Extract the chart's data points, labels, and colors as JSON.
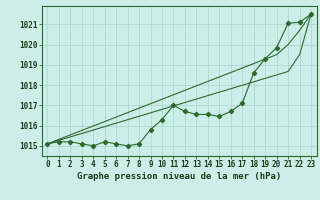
{
  "xlabel": "Graphe pression niveau de la mer (hPa)",
  "x": [
    0,
    1,
    2,
    3,
    4,
    5,
    6,
    7,
    8,
    9,
    10,
    11,
    12,
    13,
    14,
    15,
    16,
    17,
    18,
    19,
    20,
    21,
    22,
    23
  ],
  "y_main": [
    1015.1,
    1015.2,
    1015.2,
    1015.1,
    1015.0,
    1015.2,
    1015.1,
    1015.0,
    1015.1,
    1015.8,
    1016.3,
    1017.0,
    1016.7,
    1016.55,
    1016.55,
    1016.45,
    1016.7,
    1017.1,
    1018.6,
    1019.3,
    1019.85,
    1021.05,
    1021.1,
    1021.5
  ],
  "y_line1": [
    1015.1,
    1015.27,
    1015.44,
    1015.61,
    1015.78,
    1015.95,
    1016.12,
    1016.29,
    1016.46,
    1016.63,
    1016.8,
    1016.97,
    1017.14,
    1017.31,
    1017.48,
    1017.65,
    1017.82,
    1017.99,
    1018.16,
    1018.33,
    1018.5,
    1018.67,
    1019.5,
    1021.5
  ],
  "y_line2": [
    1015.1,
    1015.32,
    1015.54,
    1015.76,
    1015.98,
    1016.2,
    1016.42,
    1016.64,
    1016.86,
    1017.08,
    1017.3,
    1017.52,
    1017.74,
    1017.96,
    1018.18,
    1018.4,
    1018.62,
    1018.84,
    1019.06,
    1019.28,
    1019.5,
    1020.0,
    1020.7,
    1021.5
  ],
  "ylim": [
    1014.5,
    1021.9
  ],
  "yticks": [
    1015,
    1016,
    1017,
    1018,
    1019,
    1020,
    1021
  ],
  "line_color": "#2d6a2d",
  "bg_color": "#cceee8",
  "grid_color": "#aad4cc",
  "label_color": "#1a3d1a",
  "xlabel_fontsize": 6.5,
  "tick_fontsize": 5.5
}
